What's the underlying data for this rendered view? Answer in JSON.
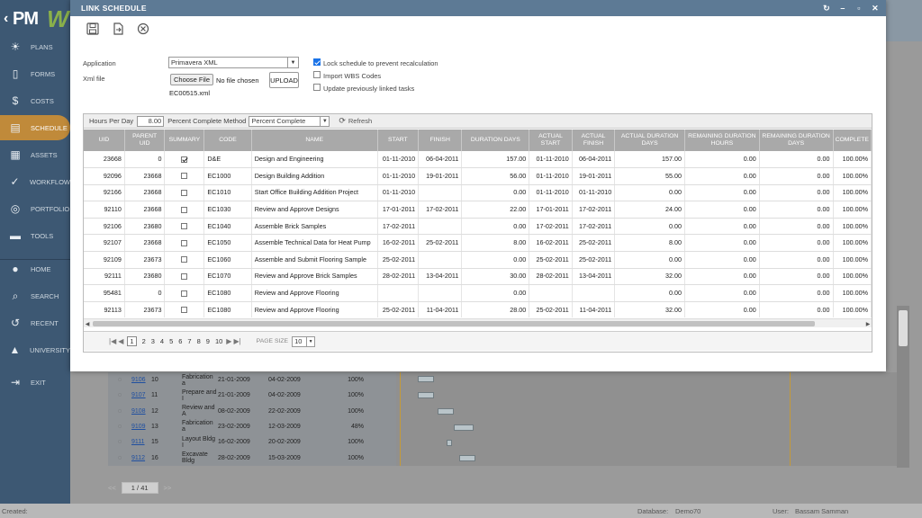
{
  "sidebar": {
    "logo_text": "PM",
    "logo_mark": "W",
    "items": [
      {
        "label": "PLANS",
        "icon": "bulb-icon"
      },
      {
        "label": "FORMS",
        "icon": "document-icon"
      },
      {
        "label": "COSTS",
        "icon": "dollar-icon"
      },
      {
        "label": "SCHEDULE",
        "icon": "schedule-icon"
      },
      {
        "label": "ASSETS",
        "icon": "assets-icon"
      },
      {
        "label": "WORKFLOW",
        "icon": "check-icon"
      },
      {
        "label": "PORTFOLIO",
        "icon": "globe-icon"
      },
      {
        "label": "TOOLS",
        "icon": "toolbox-icon"
      },
      {
        "label": "HOME",
        "icon": "avatar-icon"
      },
      {
        "label": "SEARCH",
        "icon": "search-icon"
      },
      {
        "label": "RECENT",
        "icon": "recent-icon"
      },
      {
        "label": "UNIVERSITY",
        "icon": "graduation-icon"
      },
      {
        "label": "EXIT",
        "icon": "exit-icon"
      }
    ]
  },
  "modal": {
    "title": "LINK SCHEDULE",
    "application_label": "Application",
    "application_value": "Primavera XML",
    "xml_file_label": "Xml file",
    "choose_file_label": "Choose File",
    "no_file_text": "No file chosen",
    "upload_label": "UPLOAD",
    "file_name": "EC00515.xml",
    "options": {
      "lock_label": "Lock schedule to prevent recalculation",
      "lock_checked": true,
      "import_wbs_label": "Import WBS Codes",
      "import_wbs_checked": false,
      "update_label": "Update previously linked tasks",
      "update_checked": false
    },
    "hours_per_day_label": "Hours Per Day",
    "hours_per_day_value": "8.00",
    "pct_method_label": "Percent Complete Method",
    "pct_method_value": "Percent Complete",
    "refresh_label": "Refresh"
  },
  "grid": {
    "columns": [
      "UID",
      "PARENT UID",
      "SUMMARY",
      "CODE",
      "NAME",
      "START",
      "FINISH",
      "DURATION DAYS",
      "ACTUAL START",
      "ACTUAL FINISH",
      "ACTUAL DURATION DAYS",
      "REMAINING DURATION HOURS",
      "REMAINING DURATION DAYS",
      "COMPLETE"
    ],
    "rows": [
      {
        "uid": "23668",
        "parent": "0",
        "summary": true,
        "code": "D&E",
        "name": "Design and Engineering",
        "start": "01-11-2010",
        "finish": "06-04-2011",
        "dur": "157.00",
        "astart": "01-11-2010",
        "afinish": "06-04-2011",
        "adur": "157.00",
        "rhours": "0.00",
        "rdays": "0.00",
        "pct": "100.00%"
      },
      {
        "uid": "92096",
        "parent": "23668",
        "summary": false,
        "code": "EC1000",
        "name": "Design Building Addition",
        "start": "01-11-2010",
        "finish": "19-01-2011",
        "dur": "56.00",
        "astart": "01-11-2010",
        "afinish": "19-01-2011",
        "adur": "55.00",
        "rhours": "0.00",
        "rdays": "0.00",
        "pct": "100.00%"
      },
      {
        "uid": "92166",
        "parent": "23668",
        "summary": false,
        "code": "EC1010",
        "name": "Start Office Building Addition Project",
        "start": "01-11-2010",
        "finish": "",
        "dur": "0.00",
        "astart": "01-11-2010",
        "afinish": "01-11-2010",
        "adur": "0.00",
        "rhours": "0.00",
        "rdays": "0.00",
        "pct": "100.00%"
      },
      {
        "uid": "92110",
        "parent": "23668",
        "summary": false,
        "code": "EC1030",
        "name": "Review and Approve Designs",
        "start": "17-01-2011",
        "finish": "17-02-2011",
        "dur": "22.00",
        "astart": "17-01-2011",
        "afinish": "17-02-2011",
        "adur": "24.00",
        "rhours": "0.00",
        "rdays": "0.00",
        "pct": "100.00%"
      },
      {
        "uid": "92106",
        "parent": "23680",
        "summary": false,
        "code": "EC1040",
        "name": "Assemble Brick Samples",
        "start": "17-02-2011",
        "finish": "",
        "dur": "0.00",
        "astart": "17-02-2011",
        "afinish": "17-02-2011",
        "adur": "0.00",
        "rhours": "0.00",
        "rdays": "0.00",
        "pct": "100.00%"
      },
      {
        "uid": "92107",
        "parent": "23668",
        "summary": false,
        "code": "EC1050",
        "name": "Assemble Technical Data for Heat Pump",
        "start": "16-02-2011",
        "finish": "25-02-2011",
        "dur": "8.00",
        "astart": "16-02-2011",
        "afinish": "25-02-2011",
        "adur": "8.00",
        "rhours": "0.00",
        "rdays": "0.00",
        "pct": "100.00%"
      },
      {
        "uid": "92109",
        "parent": "23673",
        "summary": false,
        "code": "EC1060",
        "name": "Assemble and Submit Flooring Sample",
        "start": "25-02-2011",
        "finish": "",
        "dur": "0.00",
        "astart": "25-02-2011",
        "afinish": "25-02-2011",
        "adur": "0.00",
        "rhours": "0.00",
        "rdays": "0.00",
        "pct": "100.00%"
      },
      {
        "uid": "92111",
        "parent": "23680",
        "summary": false,
        "code": "EC1070",
        "name": "Review and Approve Brick Samples",
        "start": "28-02-2011",
        "finish": "13-04-2011",
        "dur": "30.00",
        "astart": "28-02-2011",
        "afinish": "13-04-2011",
        "adur": "32.00",
        "rhours": "0.00",
        "rdays": "0.00",
        "pct": "100.00%"
      },
      {
        "uid": "95481",
        "parent": "0",
        "summary": false,
        "code": "EC1080",
        "name": "Review and Approve Flooring",
        "start": "",
        "finish": "",
        "dur": "0.00",
        "astart": "",
        "afinish": "",
        "adur": "0.00",
        "rhours": "0.00",
        "rdays": "0.00",
        "pct": "100.00%"
      },
      {
        "uid": "92113",
        "parent": "23673",
        "summary": false,
        "code": "EC1080",
        "name": "Review and Approve Flooring",
        "start": "25-02-2011",
        "finish": "11-04-2011",
        "dur": "28.00",
        "astart": "25-02-2011",
        "afinish": "11-04-2011",
        "adur": "32.00",
        "rhours": "0.00",
        "rdays": "0.00",
        "pct": "100.00%"
      }
    ]
  },
  "pager": {
    "pages": [
      "1",
      "2",
      "3",
      "4",
      "5",
      "6",
      "7",
      "8",
      "9",
      "10"
    ],
    "current": "1",
    "page_size_label": "PAGE SIZE",
    "page_size_value": "10"
  },
  "background": {
    "rows": [
      {
        "id": "9106",
        "n": "10",
        "name": "Fabrication a",
        "start": "21-01-2009",
        "finish": "04-02-2009",
        "pct": "100%"
      },
      {
        "id": "9107",
        "n": "11",
        "name": "Prepare and I",
        "start": "21-01-2009",
        "finish": "04-02-2009",
        "pct": "100%"
      },
      {
        "id": "9108",
        "n": "12",
        "name": "Review and A",
        "start": "08-02-2009",
        "finish": "22-02-2009",
        "pct": "100%"
      },
      {
        "id": "9109",
        "n": "13",
        "name": "Fabrication a",
        "start": "23-02-2009",
        "finish": "12-03-2009",
        "pct": "48%"
      },
      {
        "id": "9111",
        "n": "15",
        "name": "Layout Bldg I",
        "start": "16-02-2009",
        "finish": "20-02-2009",
        "pct": "100%"
      },
      {
        "id": "9112",
        "n": "16",
        "name": "Excavate Bldg",
        "start": "28-02-2009",
        "finish": "15-03-2009",
        "pct": "100%"
      }
    ],
    "pager_text": "1 / 41",
    "status_created": "Created:",
    "database_label": "Database:",
    "database_value": "Demo70",
    "user_label": "User:",
    "user_value": "Bassam Samman"
  }
}
